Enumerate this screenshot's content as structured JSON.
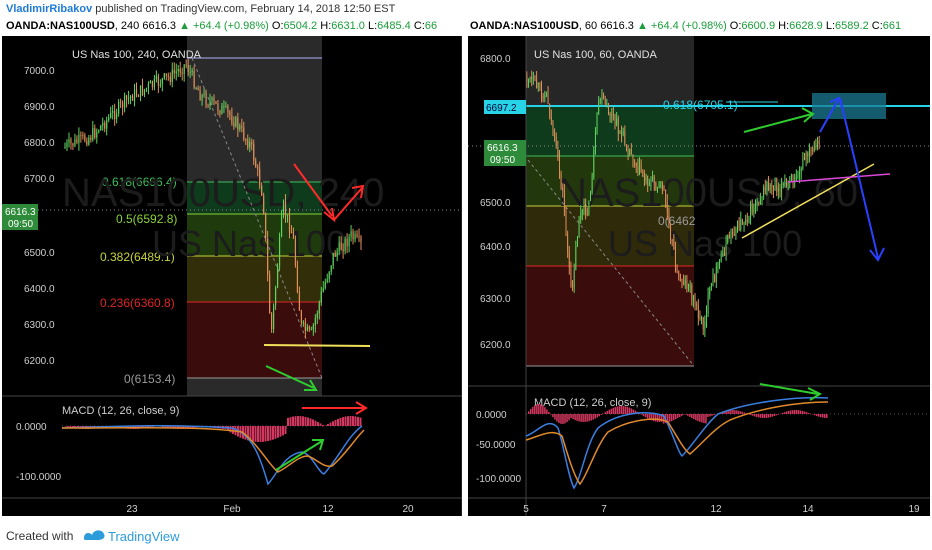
{
  "header": {
    "author": "VladimirRibakov",
    "published_text": "published on TradingView.com, February 14, 2018 12:50 EST"
  },
  "left": {
    "symbol": "OANDA:NAS100USD",
    "interval": "240",
    "price": "6616.3",
    "change": "▲ +64.4 (+0.98%)",
    "open_label": "O:",
    "open": "6504.2",
    "high_label": "H:",
    "high": "6631.0",
    "low_label": "L:",
    "low": "6485.4",
    "close_label": "C:",
    "close": "66",
    "chart_title": "US Nas 100, 240, OANDA",
    "watermark_1": "NAS100USD, 240",
    "watermark_2": "US Nas 100",
    "y_ticks": [
      "7000.0",
      "6900.0",
      "6800.0",
      "6700.0",
      "6500.0",
      "6400.0",
      "6300.0",
      "6200.0"
    ],
    "price_tag": "6616.3",
    "price_tag_time": "09:50",
    "fib": [
      {
        "label": "0.618(6696.4)",
        "color": "#3fbf5a"
      },
      {
        "label": "0.5(6592.8)",
        "color": "#8bd33a"
      },
      {
        "label": "0.382(6489.1)",
        "color": "#c8d23a"
      },
      {
        "label": "0.236(6360.8)",
        "color": "#e02525"
      },
      {
        "label": "0(6153.4)",
        "color": "#9a9a9a"
      }
    ],
    "macd_title": "MACD (12, 26, close, 9)",
    "macd_ticks": [
      "0.0000",
      "-100.0000"
    ],
    "x_ticks": [
      "23",
      "Feb",
      "12",
      "20"
    ]
  },
  "right": {
    "symbol": "OANDA:NAS100USD",
    "interval": "60",
    "price": "6616.3",
    "change": "▲ +64.4 (+0.98%)",
    "open_label": "O:",
    "open": "6600.9",
    "high_label": "H:",
    "high": "6628.9",
    "low_label": "L:",
    "low": "6589.2",
    "close_label": "C:",
    "close": "661",
    "chart_title": "US Nas 100, 60, OANDA",
    "watermark_1": "NAS100USD, 60",
    "watermark_2": "US Nas 100",
    "y_ticks": [
      "6800.0",
      "6500.0",
      "6400.0",
      "6300.0",
      "6200.0"
    ],
    "tag_cyan": "6697.2",
    "price_tag": "6616.3",
    "price_tag_time": "09:50",
    "fib_label": "0.618(6705.1)",
    "fib_zero": "0(6462",
    "macd_title": "MACD (12, 26, close, 9)",
    "macd_ticks": [
      "0.0000",
      "-50.0000",
      "-100.0000"
    ],
    "x_ticks": [
      "5",
      "7",
      "12",
      "14",
      "19"
    ]
  },
  "footer": {
    "created_with": "Created with",
    "brand": "TradingView"
  }
}
